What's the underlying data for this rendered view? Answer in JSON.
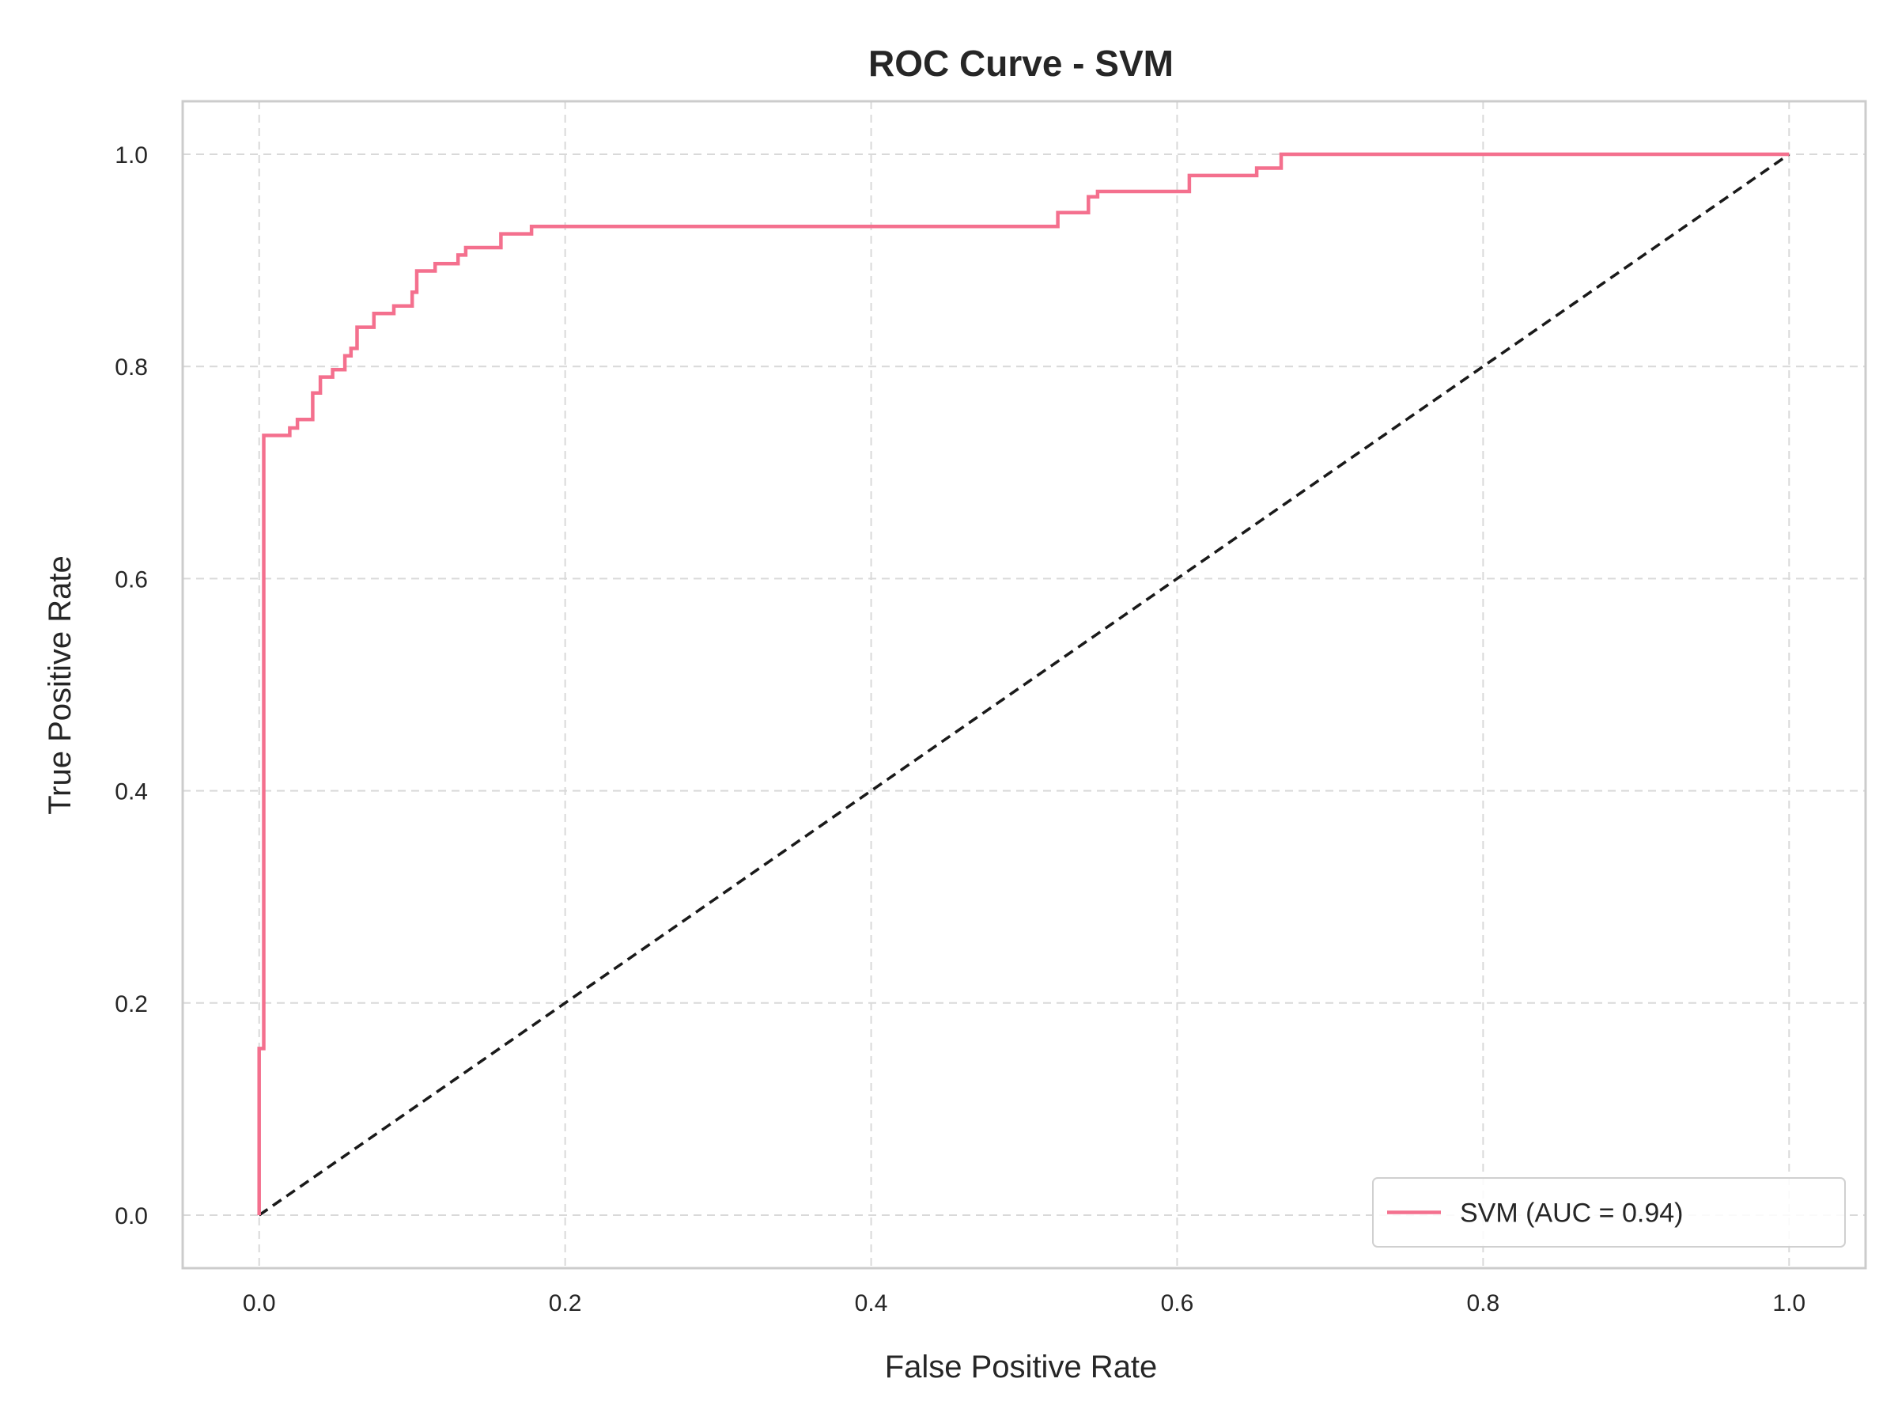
{
  "chart_data": {
    "type": "line",
    "title": "ROC Curve - SVM",
    "xlabel": "False Positive Rate",
    "ylabel": "True Positive Rate",
    "xlim": [
      -0.05,
      1.05
    ],
    "ylim": [
      -0.05,
      1.05
    ],
    "xticks": [
      "0.0",
      "0.2",
      "0.4",
      "0.6",
      "0.8",
      "1.0"
    ],
    "yticks": [
      "0.0",
      "0.2",
      "0.4",
      "0.6",
      "0.8",
      "1.0"
    ],
    "grid": true,
    "grid_style": "dashed",
    "legend_position": "lower right",
    "series": [
      {
        "name": "SVM (AUC = 0.94)",
        "color": "#f4708e",
        "style": "solid",
        "x": [
          0,
          0,
          0.003,
          0.003,
          0.005,
          0.005,
          0.02,
          0.02,
          0.025,
          0.025,
          0.035,
          0.035,
          0.04,
          0.04,
          0.048,
          0.048,
          0.056,
          0.056,
          0.06,
          0.06,
          0.064,
          0.064,
          0.075,
          0.075,
          0.088,
          0.088,
          0.1,
          0.1,
          0.103,
          0.103,
          0.115,
          0.115,
          0.13,
          0.13,
          0.135,
          0.135,
          0.158,
          0.158,
          0.178,
          0.178,
          0.522,
          0.522,
          0.542,
          0.542,
          0.548,
          0.548,
          0.608,
          0.608,
          0.652,
          0.652,
          0.668,
          0.668,
          1.0
        ],
        "y": [
          0,
          0.157,
          0.157,
          0.735,
          0.735,
          0.735,
          0.735,
          0.742,
          0.742,
          0.75,
          0.75,
          0.775,
          0.775,
          0.79,
          0.79,
          0.797,
          0.797,
          0.81,
          0.81,
          0.817,
          0.817,
          0.837,
          0.837,
          0.85,
          0.85,
          0.857,
          0.857,
          0.87,
          0.87,
          0.89,
          0.89,
          0.897,
          0.897,
          0.905,
          0.905,
          0.912,
          0.912,
          0.925,
          0.925,
          0.932,
          0.932,
          0.945,
          0.945,
          0.96,
          0.96,
          0.965,
          0.965,
          0.98,
          0.98,
          0.987,
          0.987,
          1.0,
          1.0
        ]
      },
      {
        "name": "",
        "color": "#1a1a1a",
        "style": "dashed",
        "x": [
          0,
          1
        ],
        "y": [
          0,
          1
        ]
      }
    ],
    "legend": [
      {
        "label": "SVM (AUC = 0.94)",
        "color": "#f4708e"
      }
    ]
  }
}
